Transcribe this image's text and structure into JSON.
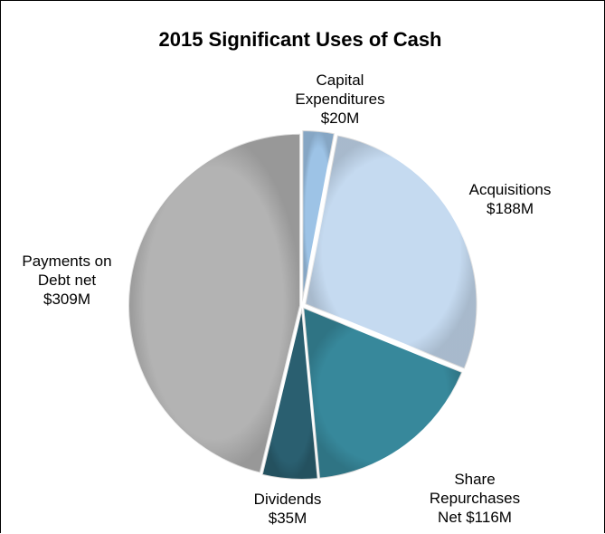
{
  "chart_data": {
    "type": "pie",
    "title": "2015 Significant Uses of Cash",
    "unit": "$M",
    "slices": [
      {
        "label_lines": [
          "Capital",
          "Expenditures",
          "$20M"
        ],
        "value": 20,
        "color": "#9dc3e6"
      },
      {
        "label_lines": [
          "Acquisitions",
          "$188M"
        ],
        "value": 188,
        "color": "#c5daf0"
      },
      {
        "label_lines": [
          "Share",
          "Repurchases",
          "Net $116M"
        ],
        "value": 116,
        "color": "#37889b"
      },
      {
        "label_lines": [
          "Dividends",
          "$35M"
        ],
        "value": 35,
        "color": "#2a5f70"
      },
      {
        "label_lines": [
          "Payments on",
          "Debt net",
          "$309M"
        ],
        "value": 309,
        "color": "#b3b3b3"
      }
    ],
    "start_angle_deg": 0,
    "direction": "clockwise",
    "legend": "none",
    "grid": false
  }
}
